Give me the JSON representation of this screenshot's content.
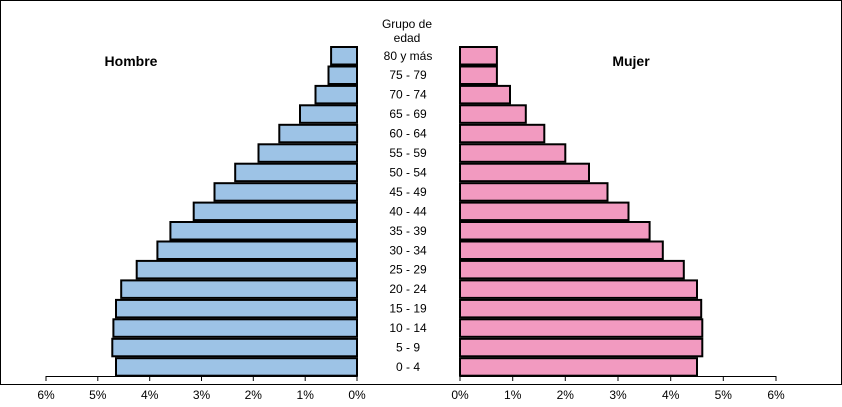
{
  "chart_data": {
    "type": "bar",
    "orientation": "horizontal",
    "layout": "population-pyramid",
    "category_axis_title_line1": "Grupo de",
    "category_axis_title_line2": "edad",
    "categories": [
      "80 y más",
      "75 - 79",
      "70 - 74",
      "65 - 69",
      "60 - 64",
      "55 - 59",
      "50 - 54",
      "45 - 49",
      "40 - 44",
      "35 - 39",
      "30 - 34",
      "25 - 29",
      "20 - 24",
      "15 - 19",
      "10 - 14",
      "5 - 9",
      "0 - 4"
    ],
    "series": [
      {
        "name": "Hombre",
        "color": "#9dc3e6",
        "values": [
          0.5,
          0.55,
          0.8,
          1.1,
          1.5,
          1.9,
          2.35,
          2.75,
          3.15,
          3.6,
          3.85,
          4.25,
          4.55,
          4.65,
          4.7,
          4.72,
          4.65
        ]
      },
      {
        "name": "Mujer",
        "color": "#f29ac0",
        "values": [
          0.7,
          0.7,
          0.95,
          1.25,
          1.6,
          2.0,
          2.45,
          2.8,
          3.2,
          3.6,
          3.85,
          4.25,
          4.5,
          4.58,
          4.6,
          4.6,
          4.5
        ]
      }
    ],
    "xlim": [
      0,
      6
    ],
    "x_ticks": [
      0,
      1,
      2,
      3,
      4,
      5,
      6
    ],
    "x_tick_labels": [
      "0%",
      "1%",
      "2%",
      "3%",
      "4%",
      "5%",
      "6%"
    ],
    "grid": false,
    "legend": "none"
  }
}
